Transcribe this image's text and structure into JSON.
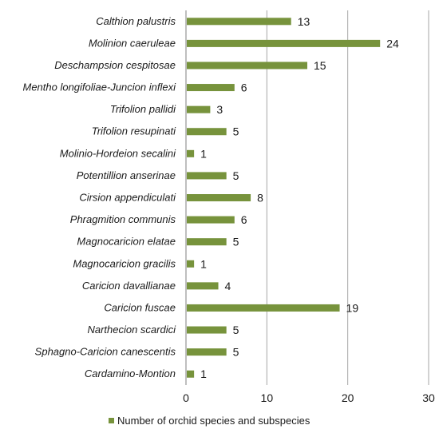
{
  "chart_data": {
    "type": "bar",
    "orientation": "horizontal",
    "categories": [
      "Calthion palustris",
      "Molinion caeruleae",
      "Deschampsion cespitosae",
      "Mentho longifoliae-Juncion inflexi",
      "Trifolion pallidi",
      "Trifolion resupinati",
      "Molinio-Hordeion secalini",
      "Potentillion anserinae",
      "Cirsion appendiculati",
      "Phragmition communis",
      "Magnocaricion elatae",
      "Magnocaricion gracilis",
      "Caricion davallianae",
      "Caricion fuscae",
      "Narthecion scardici",
      "Sphagno-Caricion canescentis",
      "Cardamino-Montion"
    ],
    "series": [
      {
        "name": "Number of orchid species and subspecies",
        "values": [
          13,
          24,
          15,
          6,
          3,
          5,
          1,
          5,
          8,
          6,
          5,
          1,
          4,
          19,
          5,
          5,
          1
        ]
      }
    ],
    "xlim": [
      0,
      30
    ],
    "xticks": [
      0,
      10,
      20,
      30
    ],
    "grid": true,
    "legend": "bottom",
    "colors": {
      "bar": "#77933c",
      "grid": "#a6a6a6",
      "axis": "#7f7f7f"
    }
  }
}
